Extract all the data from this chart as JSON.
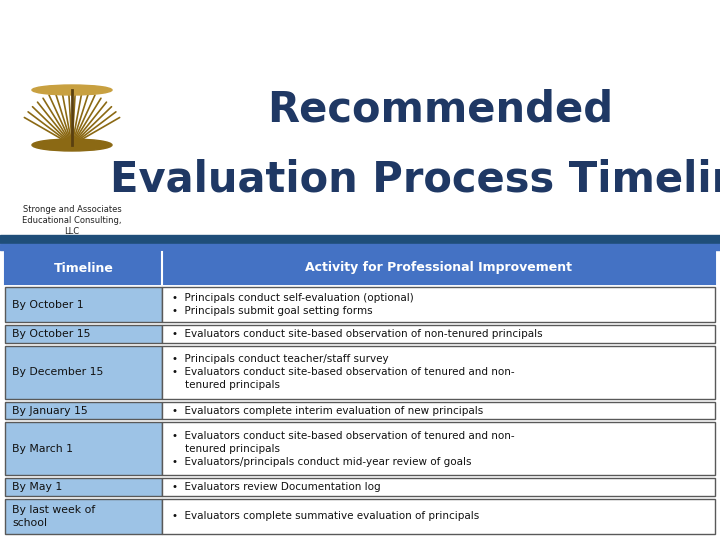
{
  "title_line1": "Recommended",
  "title_line2": "Evaluation Process Timeline",
  "title_color": "#1F3864",
  "header_bg": "#4472C4",
  "header_text_color": "#FFFFFF",
  "col1_header": "Timeline",
  "col2_header": "Activity for Professional Improvement",
  "left_col_bg": "#9DC3E6",
  "right_col_bg": "#FFFFFF",
  "border_color": "#4472C4",
  "cell_border_color": "#595959",
  "separator_dark": "#1F4E79",
  "separator_light": "#4472C4",
  "rows": [
    {
      "timeline": "By October 1",
      "activity": "•  Principals conduct self-evaluation (optional)\n•  Principals submit goal setting forms",
      "nlines": 2
    },
    {
      "timeline": "By October 15",
      "activity": "•  Evaluators conduct site-based observation of non-tenured principals",
      "nlines": 1
    },
    {
      "timeline": "By December 15",
      "activity": "•  Principals conduct teacher/staff survey\n•  Evaluators conduct site-based observation of tenured and non-\n    tenured principals",
      "nlines": 3
    },
    {
      "timeline": "By January 15",
      "activity": "•  Evaluators complete interim evaluation of new principals",
      "nlines": 1
    },
    {
      "timeline": "By March 1",
      "activity": "•  Evaluators conduct site-based observation of tenured and non-\n    tenured principals\n•  Evaluators/principals conduct mid-year review of goals",
      "nlines": 3
    },
    {
      "timeline": "By May 1",
      "activity": "•  Evaluators review Documentation log",
      "nlines": 1
    },
    {
      "timeline": "By last week of\nschool",
      "activity": "•  Evaluators complete summative evaluation of principals",
      "nlines": 2
    }
  ],
  "fig_width": 7.2,
  "fig_height": 5.4,
  "dpi": 100
}
